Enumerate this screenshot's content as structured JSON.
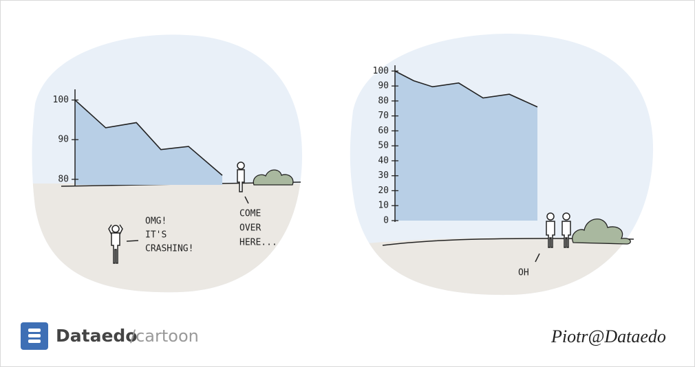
{
  "chart_data": [
    {
      "type": "area",
      "x": [
        0,
        1,
        2,
        2.8,
        3.7,
        4.8
      ],
      "values": [
        100,
        93,
        94.3,
        87.5,
        88.3,
        81
      ],
      "xlim": [
        0,
        4.8
      ],
      "ylim": [
        78.6,
        102
      ],
      "yticks": [
        80,
        90,
        100
      ],
      "color": "#b8cfe6"
    },
    {
      "type": "area",
      "x": [
        0,
        1,
        2,
        3.4,
        4.7,
        6.1,
        7.6
      ],
      "values": [
        100,
        93.5,
        89.5,
        92,
        82,
        84.5,
        76
      ],
      "xlim": [
        0,
        7.6
      ],
      "ylim": [
        0,
        102
      ],
      "yticks": [
        0,
        10,
        20,
        30,
        40,
        50,
        60,
        70,
        80,
        90,
        100
      ],
      "color": "#b8cfe6"
    }
  ],
  "speech": {
    "left": [
      "OMG!",
      "IT'S",
      "CRASHING!"
    ],
    "middle": [
      "COME",
      "OVER",
      "HERE..."
    ],
    "right": [
      "OH"
    ]
  },
  "footer": {
    "brand": "Dataedo",
    "section": "/cartoon",
    "signature": "Piotr@Dataedo"
  }
}
